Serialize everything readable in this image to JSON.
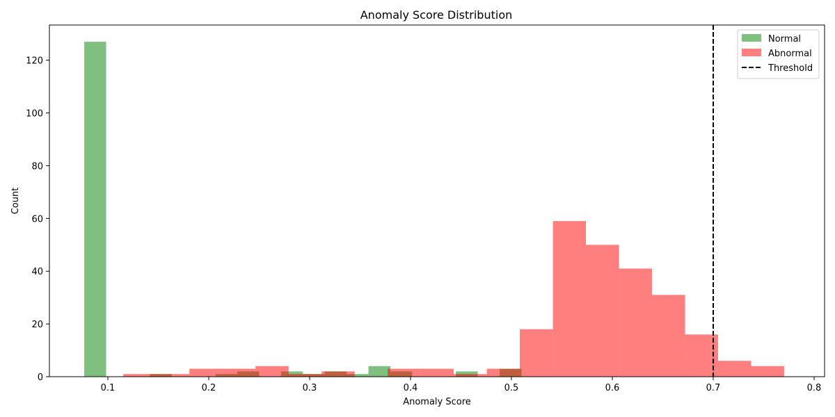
{
  "chart_data": {
    "type": "histogram",
    "title": "Anomaly Score Distribution",
    "xlabel": "Anomaly Score",
    "ylabel": "Count",
    "xlim": [
      0.043,
      1.811
    ],
    "ylim": [
      0,
      133.35
    ],
    "x_ticks": [
      0.1,
      0.2,
      0.3,
      0.4,
      0.5,
      0.6,
      0.7,
      0.8
    ],
    "x_tick_labels": [
      "0.1",
      "0.2",
      "0.3",
      "0.4",
      "0.5",
      "0.6",
      "0.7",
      "0.8"
    ],
    "y_ticks": [
      0,
      20,
      40,
      60,
      80,
      100,
      120
    ],
    "y_tick_labels": [
      "0",
      "20",
      "40",
      "60",
      "80",
      "100",
      "120"
    ],
    "series": [
      {
        "name": "Normal",
        "color": "#008000",
        "alpha": 0.5,
        "bins": [
          {
            "x0": 0.0766,
            "x1": 0.0983,
            "count": 127
          },
          {
            "x0": 0.1416,
            "x1": 0.1633,
            "count": 1
          },
          {
            "x0": 0.2066,
            "x1": 0.2283,
            "count": 1
          },
          {
            "x0": 0.2283,
            "x1": 0.25,
            "count": 2
          },
          {
            "x0": 0.2716,
            "x1": 0.2933,
            "count": 2
          },
          {
            "x0": 0.2933,
            "x1": 0.315,
            "count": 1
          },
          {
            "x0": 0.315,
            "x1": 0.3366,
            "count": 2
          },
          {
            "x0": 0.3366,
            "x1": 0.3583,
            "count": 1
          },
          {
            "x0": 0.3583,
            "x1": 0.38,
            "count": 4
          },
          {
            "x0": 0.38,
            "x1": 0.4016,
            "count": 2
          },
          {
            "x0": 0.4449,
            "x1": 0.4666,
            "count": 2
          },
          {
            "x0": 0.4883,
            "x1": 0.51,
            "count": 3
          }
        ]
      },
      {
        "name": "Abnormal",
        "color": "#ff0000",
        "alpha": 0.5,
        "bins": [
          {
            "x0": 0.1153,
            "x1": 0.1481,
            "count": 1
          },
          {
            "x0": 0.1481,
            "x1": 0.1808,
            "count": 1
          },
          {
            "x0": 0.1808,
            "x1": 0.2136,
            "count": 3
          },
          {
            "x0": 0.2136,
            "x1": 0.2463,
            "count": 3
          },
          {
            "x0": 0.2463,
            "x1": 0.2791,
            "count": 4
          },
          {
            "x0": 0.2791,
            "x1": 0.3118,
            "count": 1
          },
          {
            "x0": 0.3118,
            "x1": 0.3446,
            "count": 2
          },
          {
            "x0": 0.3446,
            "x1": 0.3773,
            "count": 0
          },
          {
            "x0": 0.3773,
            "x1": 0.4101,
            "count": 3
          },
          {
            "x0": 0.4101,
            "x1": 0.4428,
            "count": 3
          },
          {
            "x0": 0.4428,
            "x1": 0.4756,
            "count": 1
          },
          {
            "x0": 0.4756,
            "x1": 0.5083,
            "count": 3
          },
          {
            "x0": 0.5083,
            "x1": 0.5411,
            "count": 18
          },
          {
            "x0": 0.5411,
            "x1": 0.5738,
            "count": 59
          },
          {
            "x0": 0.5738,
            "x1": 0.6066,
            "count": 50
          },
          {
            "x0": 0.6066,
            "x1": 0.6393,
            "count": 41
          },
          {
            "x0": 0.6393,
            "x1": 0.6721,
            "count": 31
          },
          {
            "x0": 0.6721,
            "x1": 0.7048,
            "count": 16
          },
          {
            "x0": 0.7048,
            "x1": 0.7376,
            "count": 6
          },
          {
            "x0": 0.7376,
            "x1": 0.7703,
            "count": 4
          }
        ]
      }
    ],
    "threshold": {
      "name": "Threshold",
      "value": 0.7,
      "color": "#000000",
      "style": "dashed"
    },
    "legend_position": "top-right",
    "grid": false
  }
}
